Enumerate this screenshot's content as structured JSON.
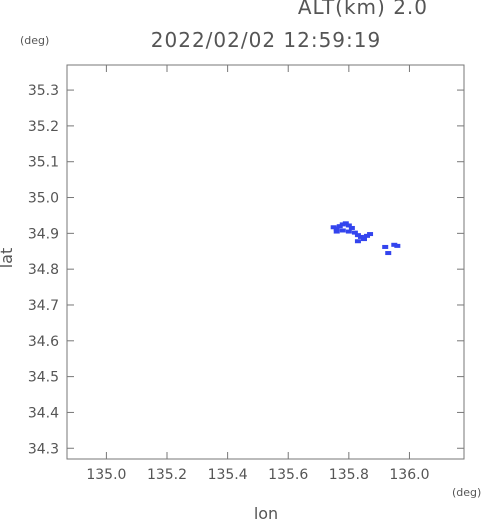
{
  "header": {
    "altitude_text": "ALT(km)  2.0",
    "datetime": "2022/02/02 12:59:19"
  },
  "colors": {
    "frame": "#777777",
    "text": "#555555",
    "echo": "#3344ee"
  },
  "chart_data": {
    "type": "scatter",
    "title": "2022/02/02 12:59:19",
    "xlabel": "lon",
    "ylabel": "lat",
    "x_unit": "(deg)",
    "y_unit": "(deg)",
    "xlim": [
      134.87,
      136.18
    ],
    "ylim": [
      34.27,
      35.37
    ],
    "x_ticks": [
      135.0,
      135.2,
      135.4,
      135.6,
      135.8,
      136.0
    ],
    "x_tick_labels": [
      "135.0",
      "135.2",
      "135.4",
      "135.6",
      "135.8",
      "136.0"
    ],
    "y_ticks": [
      34.3,
      34.4,
      34.5,
      34.6,
      34.7,
      34.8,
      34.9,
      35.0,
      35.1,
      35.2,
      35.3
    ],
    "y_tick_labels": [
      "34.3",
      "34.4",
      "34.5",
      "34.6",
      "34.7",
      "34.8",
      "34.9",
      "35.0",
      "35.1",
      "35.2",
      "35.3"
    ],
    "grid": false,
    "series": [
      {
        "points": [
          [
            135.75,
            34.917
          ],
          [
            135.76,
            34.913
          ],
          [
            135.77,
            34.92
          ],
          [
            135.78,
            34.925
          ],
          [
            135.79,
            34.928
          ],
          [
            135.8,
            34.922
          ],
          [
            135.81,
            34.915
          ],
          [
            135.76,
            34.905
          ],
          [
            135.78,
            34.908
          ],
          [
            135.8,
            34.905
          ],
          [
            135.82,
            34.902
          ],
          [
            135.83,
            34.895
          ],
          [
            135.84,
            34.89
          ],
          [
            135.85,
            34.884
          ],
          [
            135.86,
            34.893
          ],
          [
            135.83,
            34.878
          ],
          [
            135.87,
            34.898
          ],
          [
            135.92,
            34.862
          ],
          [
            135.93,
            34.845
          ],
          [
            135.95,
            34.868
          ],
          [
            135.96,
            34.865
          ]
        ]
      }
    ]
  }
}
